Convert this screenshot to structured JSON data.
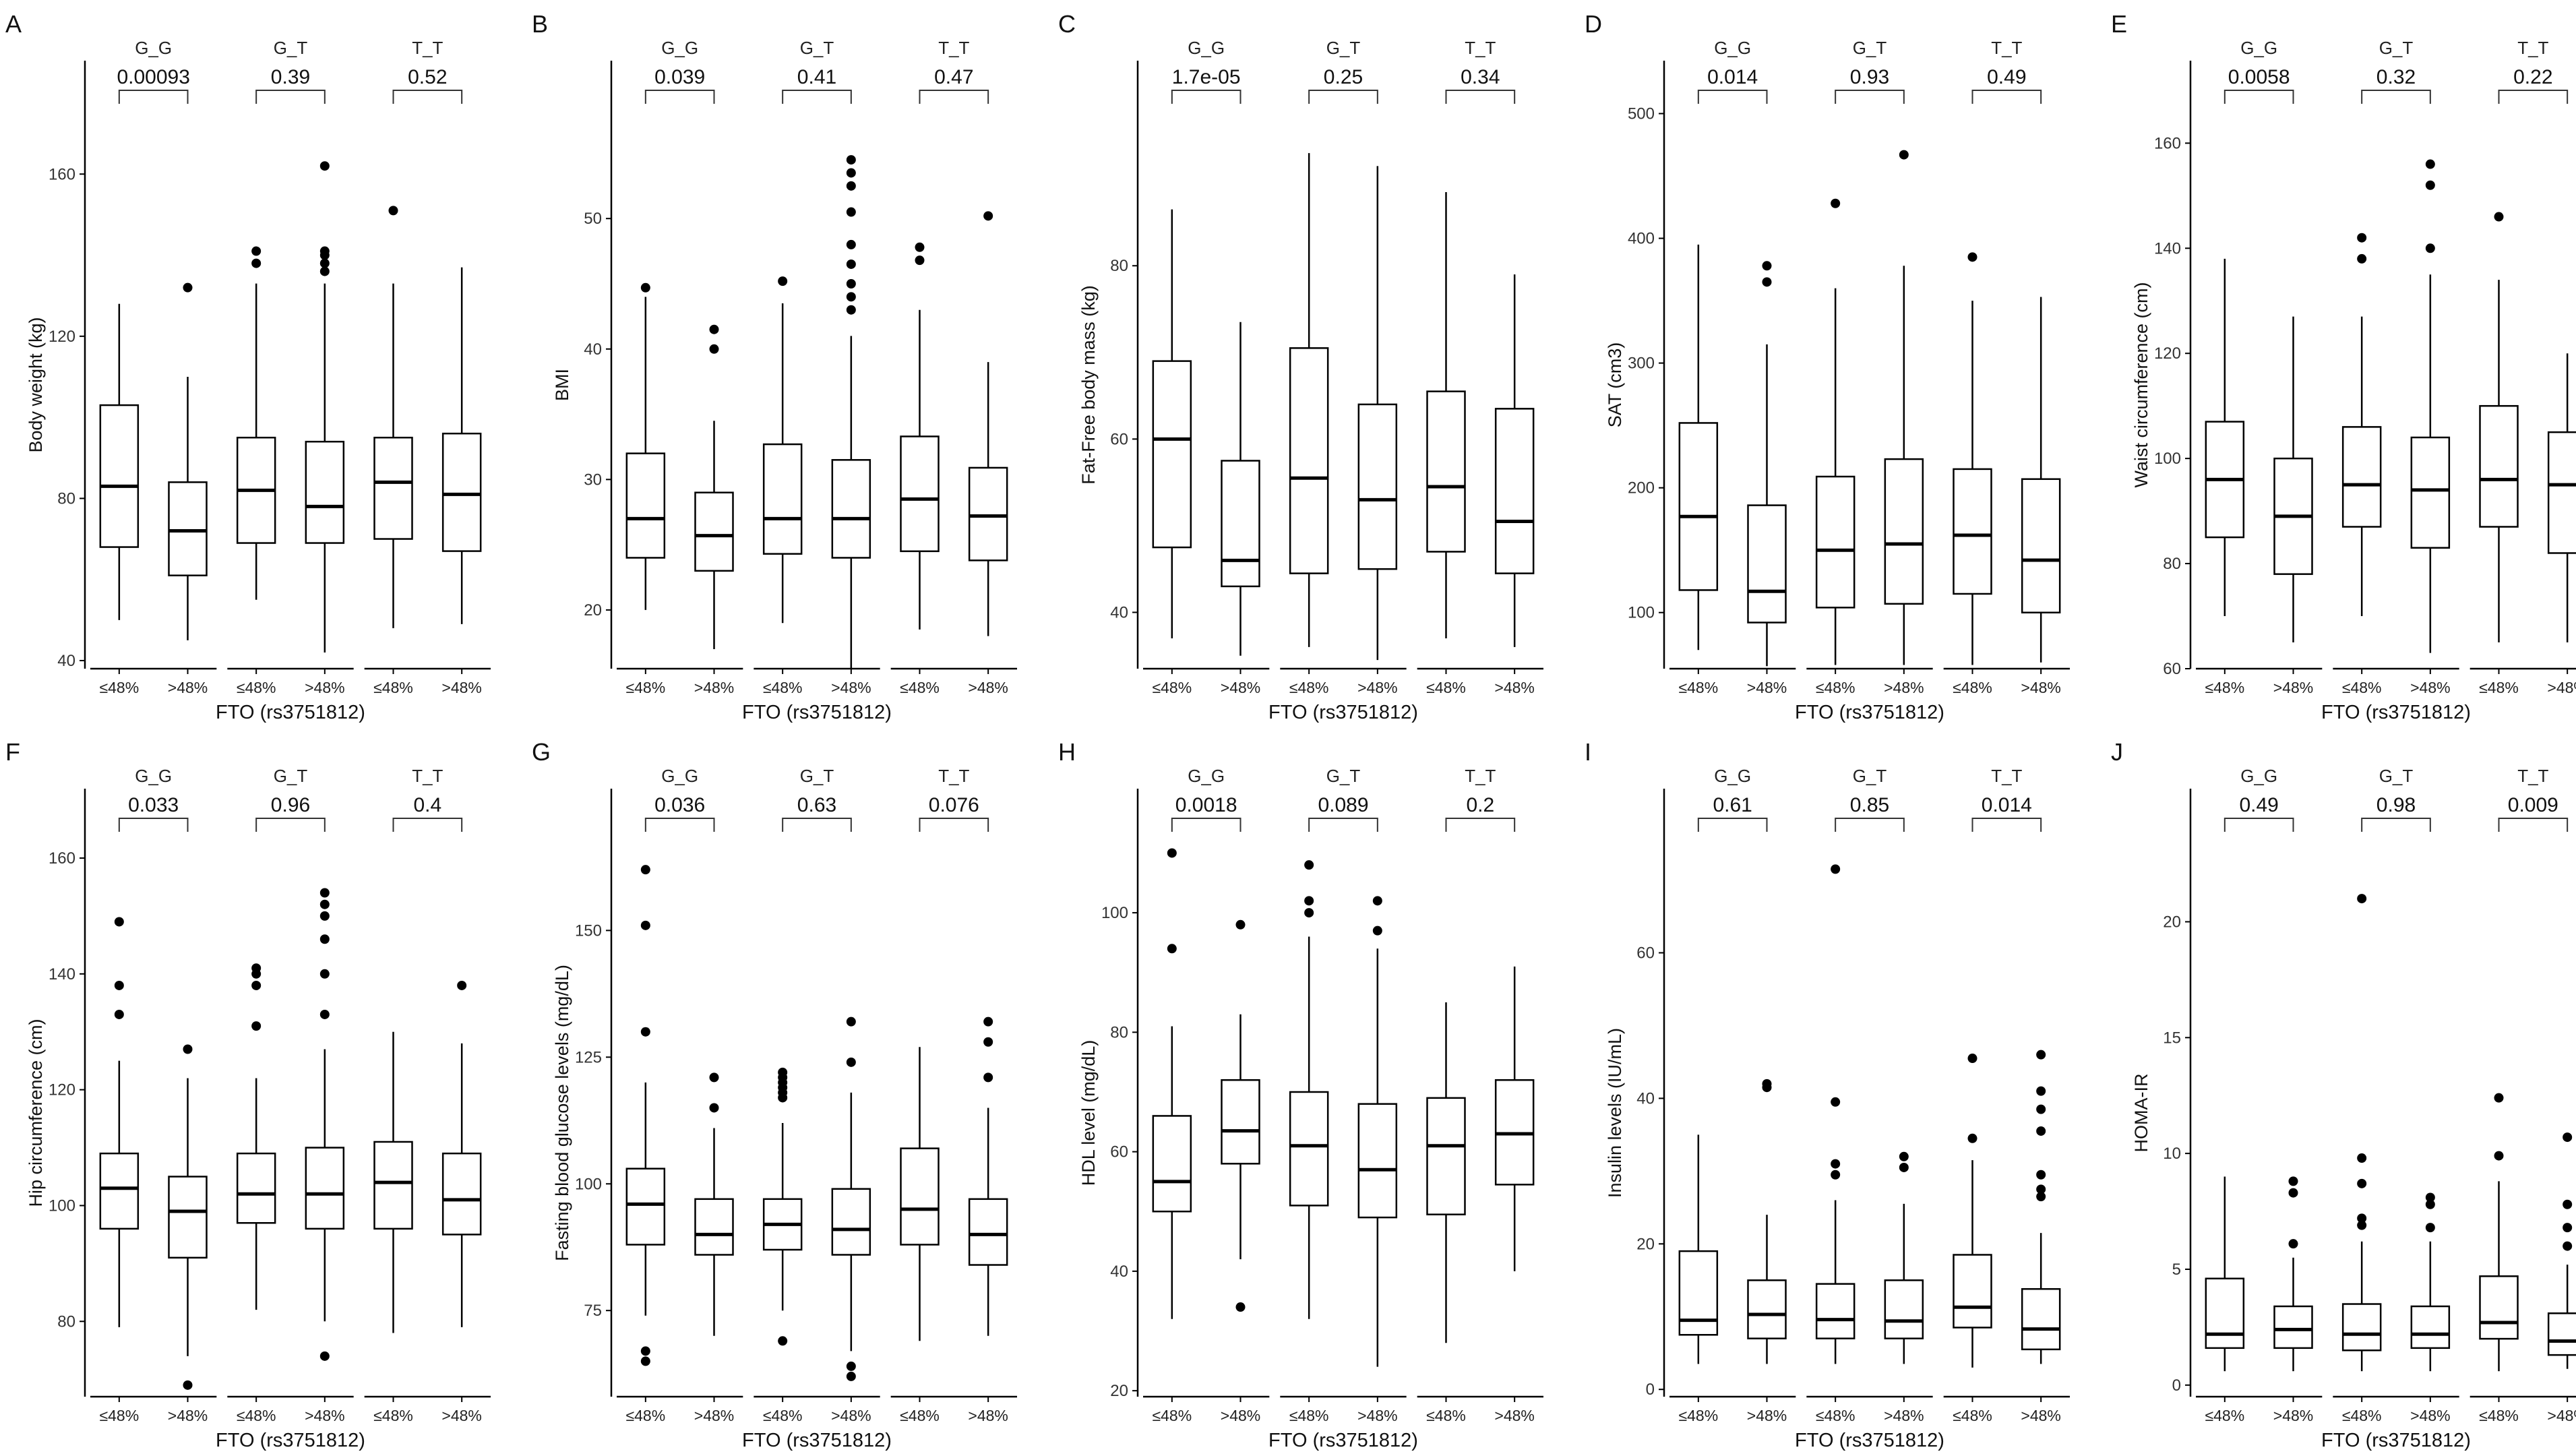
{
  "figure": {
    "xlabel": "FTO (rs3751812)",
    "genotypes": [
      "G_G",
      "G_T",
      "T_T"
    ],
    "groups": [
      "≤48%",
      ">48%"
    ],
    "colors": {
      "box_fill": "#ffffff",
      "box_stroke": "#000000",
      "axis": "#000000",
      "background": "#ffffff"
    }
  },
  "chart_data": [
    {
      "type": "boxplot",
      "letter": "A",
      "ylabel": "Body weight (kg)",
      "ylim": [
        38,
        178
      ],
      "yticks": [
        40,
        80,
        120,
        160
      ],
      "pvalues": [
        "0.00093",
        "0.39",
        "0.52"
      ],
      "boxes": [
        {
          "genotype": "G_G",
          "group": "≤48%",
          "min": 50,
          "q1": 68,
          "median": 83,
          "q3": 103,
          "max": 128,
          "outliers": []
        },
        {
          "genotype": "G_G",
          "group": ">48%",
          "min": 45,
          "q1": 61,
          "median": 72,
          "q3": 84,
          "max": 110,
          "outliers": [
            132
          ]
        },
        {
          "genotype": "G_T",
          "group": "≤48%",
          "min": 55,
          "q1": 69,
          "median": 82,
          "q3": 95,
          "max": 133,
          "outliers": [
            138,
            141
          ]
        },
        {
          "genotype": "G_T",
          "group": ">48%",
          "min": 42,
          "q1": 69,
          "median": 78,
          "q3": 94,
          "max": 133,
          "outliers": [
            136,
            138,
            140,
            141,
            162
          ]
        },
        {
          "genotype": "T_T",
          "group": "≤48%",
          "min": 48,
          "q1": 70,
          "median": 84,
          "q3": 95,
          "max": 133,
          "outliers": [
            151
          ]
        },
        {
          "genotype": "T_T",
          "group": ">48%",
          "min": 49,
          "q1": 67,
          "median": 81,
          "q3": 96,
          "max": 137,
          "outliers": []
        }
      ]
    },
    {
      "type": "boxplot",
      "letter": "B",
      "ylabel": "BMI",
      "ylim": [
        15.5,
        59
      ],
      "yticks": [
        20,
        30,
        40,
        50
      ],
      "pvalues": [
        "0.039",
        "0.41",
        "0.47"
      ],
      "boxes": [
        {
          "genotype": "G_G",
          "group": "≤48%",
          "min": 20,
          "q1": 24,
          "median": 27,
          "q3": 32,
          "max": 44,
          "outliers": [
            44.7
          ]
        },
        {
          "genotype": "G_G",
          "group": ">48%",
          "min": 17,
          "q1": 23,
          "median": 25.7,
          "q3": 29,
          "max": 34.5,
          "outliers": [
            40,
            41.5
          ]
        },
        {
          "genotype": "G_T",
          "group": "≤48%",
          "min": 19,
          "q1": 24.3,
          "median": 27,
          "q3": 32.7,
          "max": 43.5,
          "outliers": [
            45.2
          ]
        },
        {
          "genotype": "G_T",
          "group": ">48%",
          "min": 15.5,
          "q1": 24,
          "median": 27,
          "q3": 31.5,
          "max": 41,
          "outliers": [
            43,
            44,
            45,
            46.5,
            48,
            50.5,
            52.5,
            53.5,
            54.5
          ]
        },
        {
          "genotype": "T_T",
          "group": "≤48%",
          "min": 18.5,
          "q1": 24.5,
          "median": 28.5,
          "q3": 33.3,
          "max": 43,
          "outliers": [
            46.8,
            47.8
          ]
        },
        {
          "genotype": "T_T",
          "group": ">48%",
          "min": 18,
          "q1": 23.8,
          "median": 27.2,
          "q3": 30.9,
          "max": 39,
          "outliers": [
            50.2
          ]
        }
      ]
    },
    {
      "type": "boxplot",
      "letter": "C",
      "ylabel": "Fat-Free body mass (kg)",
      "ylim": [
        33.5,
        99
      ],
      "yticks": [
        40,
        60,
        80
      ],
      "pvalues": [
        "1.7e-05",
        "0.25",
        "0.34"
      ],
      "boxes": [
        {
          "genotype": "G_G",
          "group": "≤48%",
          "min": 37,
          "q1": 47.5,
          "median": 60,
          "q3": 69,
          "max": 86.5,
          "outliers": []
        },
        {
          "genotype": "G_G",
          "group": ">48%",
          "min": 35,
          "q1": 43,
          "median": 46,
          "q3": 57.5,
          "max": 73.5,
          "outliers": []
        },
        {
          "genotype": "G_T",
          "group": "≤48%",
          "min": 36,
          "q1": 44.5,
          "median": 55.5,
          "q3": 70.5,
          "max": 93,
          "outliers": []
        },
        {
          "genotype": "G_T",
          "group": ">48%",
          "min": 34.5,
          "q1": 45,
          "median": 53,
          "q3": 64,
          "max": 91.5,
          "outliers": []
        },
        {
          "genotype": "T_T",
          "group": "≤48%",
          "min": 37,
          "q1": 47,
          "median": 54.5,
          "q3": 65.5,
          "max": 88.5,
          "outliers": []
        },
        {
          "genotype": "T_T",
          "group": ">48%",
          "min": 36,
          "q1": 44.5,
          "median": 50.5,
          "q3": 63.5,
          "max": 79,
          "outliers": []
        }
      ]
    },
    {
      "type": "boxplot",
      "letter": "D",
      "ylabel": "SAT (cm3)",
      "ylim": [
        55,
        510
      ],
      "yticks": [
        100,
        200,
        300,
        400,
        500
      ],
      "pvalues": [
        "0.014",
        "0.93",
        "0.49"
      ],
      "boxes": [
        {
          "genotype": "G_G",
          "group": "≤48%",
          "min": 70,
          "q1": 118,
          "median": 177,
          "q3": 252,
          "max": 395,
          "outliers": []
        },
        {
          "genotype": "G_G",
          "group": ">48%",
          "min": 57,
          "q1": 92,
          "median": 117,
          "q3": 186,
          "max": 315,
          "outliers": [
            365,
            378
          ]
        },
        {
          "genotype": "G_T",
          "group": "≤48%",
          "min": 58,
          "q1": 104,
          "median": 150,
          "q3": 209,
          "max": 360,
          "outliers": [
            428
          ]
        },
        {
          "genotype": "G_T",
          "group": ">48%",
          "min": 58,
          "q1": 107,
          "median": 155,
          "q3": 223,
          "max": 378,
          "outliers": [
            467
          ]
        },
        {
          "genotype": "T_T",
          "group": "≤48%",
          "min": 58,
          "q1": 115,
          "median": 162,
          "q3": 215,
          "max": 350,
          "outliers": [
            385
          ]
        },
        {
          "genotype": "T_T",
          "group": ">48%",
          "min": 60,
          "q1": 100,
          "median": 142,
          "q3": 207,
          "max": 353,
          "outliers": []
        }
      ]
    },
    {
      "type": "boxplot",
      "letter": "E",
      "ylabel": "Waist circumference (cm)",
      "ylim": [
        60,
        168
      ],
      "yticks": [
        60,
        80,
        100,
        120,
        140,
        160
      ],
      "pvalues": [
        "0.0058",
        "0.32",
        "0.22"
      ],
      "boxes": [
        {
          "genotype": "G_G",
          "group": "≤48%",
          "min": 70,
          "q1": 85,
          "median": 96,
          "q3": 107,
          "max": 138,
          "outliers": []
        },
        {
          "genotype": "G_G",
          "group": ">48%",
          "min": 65,
          "q1": 78,
          "median": 89,
          "q3": 100,
          "max": 127,
          "outliers": []
        },
        {
          "genotype": "G_T",
          "group": "≤48%",
          "min": 70,
          "q1": 87,
          "median": 95,
          "q3": 106,
          "max": 127,
          "outliers": [
            138,
            142
          ]
        },
        {
          "genotype": "G_T",
          "group": ">48%",
          "min": 63,
          "q1": 83,
          "median": 94,
          "q3": 104,
          "max": 135,
          "outliers": [
            140,
            152,
            156
          ]
        },
        {
          "genotype": "T_T",
          "group": "≤48%",
          "min": 65,
          "q1": 87,
          "median": 96,
          "q3": 110,
          "max": 134,
          "outliers": [
            146
          ]
        },
        {
          "genotype": "T_T",
          "group": ">48%",
          "min": 65,
          "q1": 82,
          "median": 95,
          "q3": 105,
          "max": 120,
          "outliers": []
        }
      ]
    },
    {
      "type": "boxplot",
      "letter": "F",
      "ylabel": "Hip circumference (cm)",
      "ylim": [
        67,
        165
      ],
      "yticks": [
        80,
        100,
        120,
        140,
        160
      ],
      "pvalues": [
        "0.033",
        "0.96",
        "0.4"
      ],
      "boxes": [
        {
          "genotype": "G_G",
          "group": "≤48%",
          "min": 79,
          "q1": 96,
          "median": 103,
          "q3": 109,
          "max": 125,
          "outliers": [
            133,
            138,
            149
          ]
        },
        {
          "genotype": "G_G",
          "group": ">48%",
          "min": 74,
          "q1": 91,
          "median": 99,
          "q3": 105,
          "max": 122,
          "outliers": [
            69,
            127
          ]
        },
        {
          "genotype": "G_T",
          "group": "≤48%",
          "min": 82,
          "q1": 97,
          "median": 102,
          "q3": 109,
          "max": 122,
          "outliers": [
            131,
            138,
            140,
            141
          ]
        },
        {
          "genotype": "G_T",
          "group": ">48%",
          "min": 80,
          "q1": 96,
          "median": 102,
          "q3": 110,
          "max": 127,
          "outliers": [
            74,
            133,
            140,
            146,
            150,
            152,
            154
          ]
        },
        {
          "genotype": "T_T",
          "group": "≤48%",
          "min": 78,
          "q1": 96,
          "median": 104,
          "q3": 111,
          "max": 130,
          "outliers": []
        },
        {
          "genotype": "T_T",
          "group": ">48%",
          "min": 79,
          "q1": 95,
          "median": 101,
          "q3": 109,
          "max": 128,
          "outliers": [
            138
          ]
        }
      ]
    },
    {
      "type": "boxplot",
      "letter": "G",
      "ylabel": "Fasting blood glucose levels (mg/dL)",
      "ylim": [
        58,
        170
      ],
      "yticks": [
        75,
        100,
        125,
        150
      ],
      "pvalues": [
        "0.036",
        "0.63",
        "0.076"
      ],
      "boxes": [
        {
          "genotype": "G_G",
          "group": "≤48%",
          "min": 74,
          "q1": 88,
          "median": 96,
          "q3": 103,
          "max": 120,
          "outliers": [
            65,
            67,
            130,
            151,
            162
          ]
        },
        {
          "genotype": "G_G",
          "group": ">48%",
          "min": 70,
          "q1": 86,
          "median": 90,
          "q3": 97,
          "max": 111,
          "outliers": [
            115,
            121
          ]
        },
        {
          "genotype": "G_T",
          "group": "≤48%",
          "min": 75,
          "q1": 87,
          "median": 92,
          "q3": 97,
          "max": 112,
          "outliers": [
            69,
            117,
            118,
            119,
            120,
            121,
            122
          ]
        },
        {
          "genotype": "G_T",
          "group": ">48%",
          "min": 67,
          "q1": 86,
          "median": 91,
          "q3": 99,
          "max": 118,
          "outliers": [
            62,
            64,
            124,
            132
          ]
        },
        {
          "genotype": "T_T",
          "group": "≤48%",
          "min": 69,
          "q1": 88,
          "median": 95,
          "q3": 107,
          "max": 127,
          "outliers": []
        },
        {
          "genotype": "T_T",
          "group": ">48%",
          "min": 70,
          "q1": 84,
          "median": 90,
          "q3": 97,
          "max": 115,
          "outliers": [
            121,
            128,
            132
          ]
        }
      ]
    },
    {
      "type": "boxplot",
      "letter": "H",
      "ylabel": "HDL level (mg/dL)",
      "ylim": [
        19,
        114
      ],
      "yticks": [
        20,
        40,
        60,
        80,
        100
      ],
      "pvalues": [
        "0.0018",
        "0.089",
        "0.2"
      ],
      "boxes": [
        {
          "genotype": "G_G",
          "group": "≤48%",
          "min": 32,
          "q1": 50,
          "median": 55,
          "q3": 66,
          "max": 81,
          "outliers": [
            94,
            110
          ]
        },
        {
          "genotype": "G_G",
          "group": ">48%",
          "min": 42,
          "q1": 58,
          "median": 63.5,
          "q3": 72,
          "max": 83,
          "outliers": [
            34,
            98
          ]
        },
        {
          "genotype": "G_T",
          "group": "≤48%",
          "min": 32,
          "q1": 51,
          "median": 61,
          "q3": 70,
          "max": 96,
          "outliers": [
            100,
            102,
            108
          ]
        },
        {
          "genotype": "G_T",
          "group": ">48%",
          "min": 24,
          "q1": 49,
          "median": 57,
          "q3": 68,
          "max": 94,
          "outliers": [
            97,
            102
          ]
        },
        {
          "genotype": "T_T",
          "group": "≤48%",
          "min": 28,
          "q1": 49.5,
          "median": 61,
          "q3": 69,
          "max": 85,
          "outliers": []
        },
        {
          "genotype": "T_T",
          "group": ">48%",
          "min": 40,
          "q1": 54.5,
          "median": 63,
          "q3": 72,
          "max": 91,
          "outliers": []
        }
      ]
    },
    {
      "type": "boxplot",
      "letter": "I",
      "ylabel": "Insulin levels (IU/mL)",
      "ylim": [
        -1,
        77
      ],
      "yticks": [
        0,
        20,
        40,
        60
      ],
      "pvalues": [
        "0.61",
        "0.85",
        "0.014"
      ],
      "boxes": [
        {
          "genotype": "G_G",
          "group": "≤48%",
          "min": 3.5,
          "q1": 7.5,
          "median": 9.5,
          "q3": 19,
          "max": 35,
          "outliers": []
        },
        {
          "genotype": "G_G",
          "group": ">48%",
          "min": 3.5,
          "q1": 7,
          "median": 10.3,
          "q3": 15,
          "max": 24,
          "outliers": [
            41.5,
            42
          ]
        },
        {
          "genotype": "G_T",
          "group": "≤48%",
          "min": 3.5,
          "q1": 7,
          "median": 9.6,
          "q3": 14.5,
          "max": 26,
          "outliers": [
            29.5,
            31,
            39.5,
            71.5
          ]
        },
        {
          "genotype": "G_T",
          "group": ">48%",
          "min": 3.5,
          "q1": 7,
          "median": 9.4,
          "q3": 15,
          "max": 25.5,
          "outliers": [
            30.5,
            32
          ]
        },
        {
          "genotype": "T_T",
          "group": "≤48%",
          "min": 3,
          "q1": 8.5,
          "median": 11.3,
          "q3": 18.5,
          "max": 31.5,
          "outliers": [
            34.5,
            45.5
          ]
        },
        {
          "genotype": "T_T",
          "group": ">48%",
          "min": 3.5,
          "q1": 5.5,
          "median": 8.3,
          "q3": 13.8,
          "max": 21.5,
          "outliers": [
            26.5,
            27.5,
            29.5,
            35.5,
            38.5,
            41,
            46
          ]
        }
      ]
    },
    {
      "type": "boxplot",
      "letter": "J",
      "ylabel": "HOMA-IR",
      "ylim": [
        -0.5,
        24
      ],
      "yticks": [
        0,
        5,
        10,
        15,
        20
      ],
      "pvalues": [
        "0.49",
        "0.98",
        "0.009"
      ],
      "boxes": [
        {
          "genotype": "G_G",
          "group": "≤48%",
          "min": 0.6,
          "q1": 1.6,
          "median": 2.2,
          "q3": 4.6,
          "max": 9,
          "outliers": []
        },
        {
          "genotype": "G_G",
          "group": ">48%",
          "min": 0.6,
          "q1": 1.6,
          "median": 2.4,
          "q3": 3.4,
          "max": 5.5,
          "outliers": [
            6.1,
            8.3,
            8.8
          ]
        },
        {
          "genotype": "G_T",
          "group": "≤48%",
          "min": 0.6,
          "q1": 1.5,
          "median": 2.2,
          "q3": 3.5,
          "max": 6.2,
          "outliers": [
            6.9,
            7.2,
            8.7,
            9.8,
            21
          ]
        },
        {
          "genotype": "G_T",
          "group": ">48%",
          "min": 0.6,
          "q1": 1.6,
          "median": 2.2,
          "q3": 3.4,
          "max": 6.2,
          "outliers": [
            6.8,
            7.8,
            8.1
          ]
        },
        {
          "genotype": "T_T",
          "group": "≤48%",
          "min": 0.6,
          "q1": 2,
          "median": 2.7,
          "q3": 4.7,
          "max": 8.8,
          "outliers": [
            9.9,
            12.4
          ]
        },
        {
          "genotype": "T_T",
          "group": ">48%",
          "min": 0.7,
          "q1": 1.3,
          "median": 1.9,
          "q3": 3.1,
          "max": 5.2,
          "outliers": [
            6,
            6.8,
            7.8,
            10.7
          ]
        }
      ]
    }
  ]
}
